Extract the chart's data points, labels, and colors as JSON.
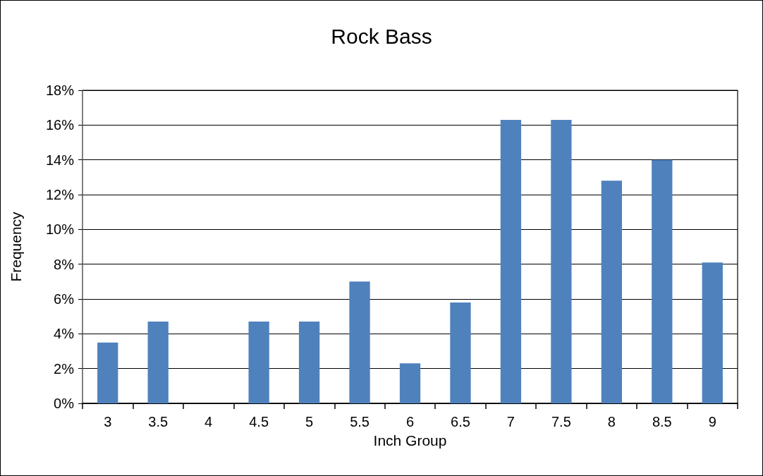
{
  "chart_data": {
    "type": "bar",
    "title": "Rock Bass",
    "xlabel": "Inch Group",
    "ylabel": "Frequency",
    "categories": [
      "3",
      "3.5",
      "4",
      "4.5",
      "5",
      "5.5",
      "6",
      "6.5",
      "7",
      "7.5",
      "8",
      "8.5",
      "9"
    ],
    "values": [
      3.5,
      4.7,
      0,
      4.7,
      4.7,
      7.0,
      2.3,
      5.8,
      16.3,
      16.3,
      12.8,
      14.0,
      8.1
    ],
    "color": "#4f81bd",
    "ylim": [
      0,
      18
    ],
    "yticks": [
      {
        "value": 0,
        "label": "0%"
      },
      {
        "value": 2,
        "label": "2%"
      },
      {
        "value": 4,
        "label": "4%"
      },
      {
        "value": 6,
        "label": "6%"
      },
      {
        "value": 8,
        "label": "8%"
      },
      {
        "value": 10,
        "label": "10%"
      },
      {
        "value": 12,
        "label": "12%"
      },
      {
        "value": 14,
        "label": "14%"
      },
      {
        "value": 16,
        "label": "16%"
      },
      {
        "value": 18,
        "label": "18%"
      }
    ],
    "grid": "y"
  }
}
